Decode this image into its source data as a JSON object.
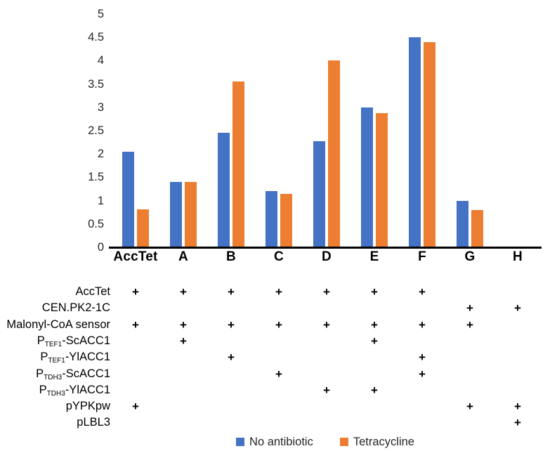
{
  "chart_data": {
    "type": "bar",
    "title": "",
    "xlabel": "",
    "ylabel": "",
    "categories": [
      "AccTet",
      "A",
      "B",
      "C",
      "D",
      "E",
      "F",
      "G",
      "H"
    ],
    "series": [
      {
        "name": "No antibiotic",
        "color": "#4472C4",
        "values": [
          2.05,
          1.4,
          2.45,
          1.2,
          2.27,
          3.0,
          4.5,
          1.0,
          0
        ]
      },
      {
        "name": "Tetracycline",
        "color": "#ED7D31",
        "values": [
          0.82,
          1.4,
          3.55,
          1.15,
          4.0,
          2.87,
          4.4,
          0.8,
          0
        ]
      }
    ],
    "ylim": [
      0,
      5
    ],
    "yticks": [
      0,
      0.5,
      1,
      1.5,
      2,
      2.5,
      3,
      3.5,
      4,
      4.5,
      5
    ],
    "grid": false,
    "legend_position": "bottom"
  },
  "matrix": {
    "plus": "+",
    "rows": [
      {
        "pre": "AccTet",
        "sub": "",
        "post": "",
        "marks": [
          1,
          1,
          1,
          1,
          1,
          1,
          1,
          0,
          0
        ]
      },
      {
        "pre": "CEN.PK2-1C",
        "sub": "",
        "post": "",
        "marks": [
          0,
          0,
          0,
          0,
          0,
          0,
          0,
          1,
          1
        ]
      },
      {
        "pre": "Malonyl-CoA sensor",
        "sub": "",
        "post": "",
        "marks": [
          1,
          1,
          1,
          1,
          1,
          1,
          1,
          1,
          0
        ]
      },
      {
        "pre": "P",
        "sub": "TEF1",
        "post": "-ScACC1",
        "marks": [
          0,
          1,
          0,
          0,
          0,
          1,
          0,
          0,
          0
        ]
      },
      {
        "pre": "P",
        "sub": "TEF1",
        "post": "-YlACC1",
        "marks": [
          0,
          0,
          1,
          0,
          0,
          0,
          1,
          0,
          0
        ]
      },
      {
        "pre": "P",
        "sub": "TDH3",
        "post": "-ScACC1",
        "marks": [
          0,
          0,
          0,
          1,
          0,
          0,
          1,
          0,
          0
        ]
      },
      {
        "pre": "P",
        "sub": "TDH3",
        "post": "-YlACC1",
        "marks": [
          0,
          0,
          0,
          0,
          1,
          1,
          0,
          0,
          0
        ]
      },
      {
        "pre": "pYPKpw",
        "sub": "",
        "post": "",
        "marks": [
          1,
          0,
          0,
          0,
          0,
          0,
          0,
          1,
          1
        ]
      },
      {
        "pre": "pLBL3",
        "sub": "",
        "post": "",
        "marks": [
          0,
          0,
          0,
          0,
          0,
          0,
          0,
          0,
          1
        ]
      }
    ]
  },
  "legend": {
    "items": [
      {
        "label": "No antibiotic",
        "color": "#4472C4"
      },
      {
        "label": "Tetracycline",
        "color": "#ED7D31"
      }
    ]
  }
}
